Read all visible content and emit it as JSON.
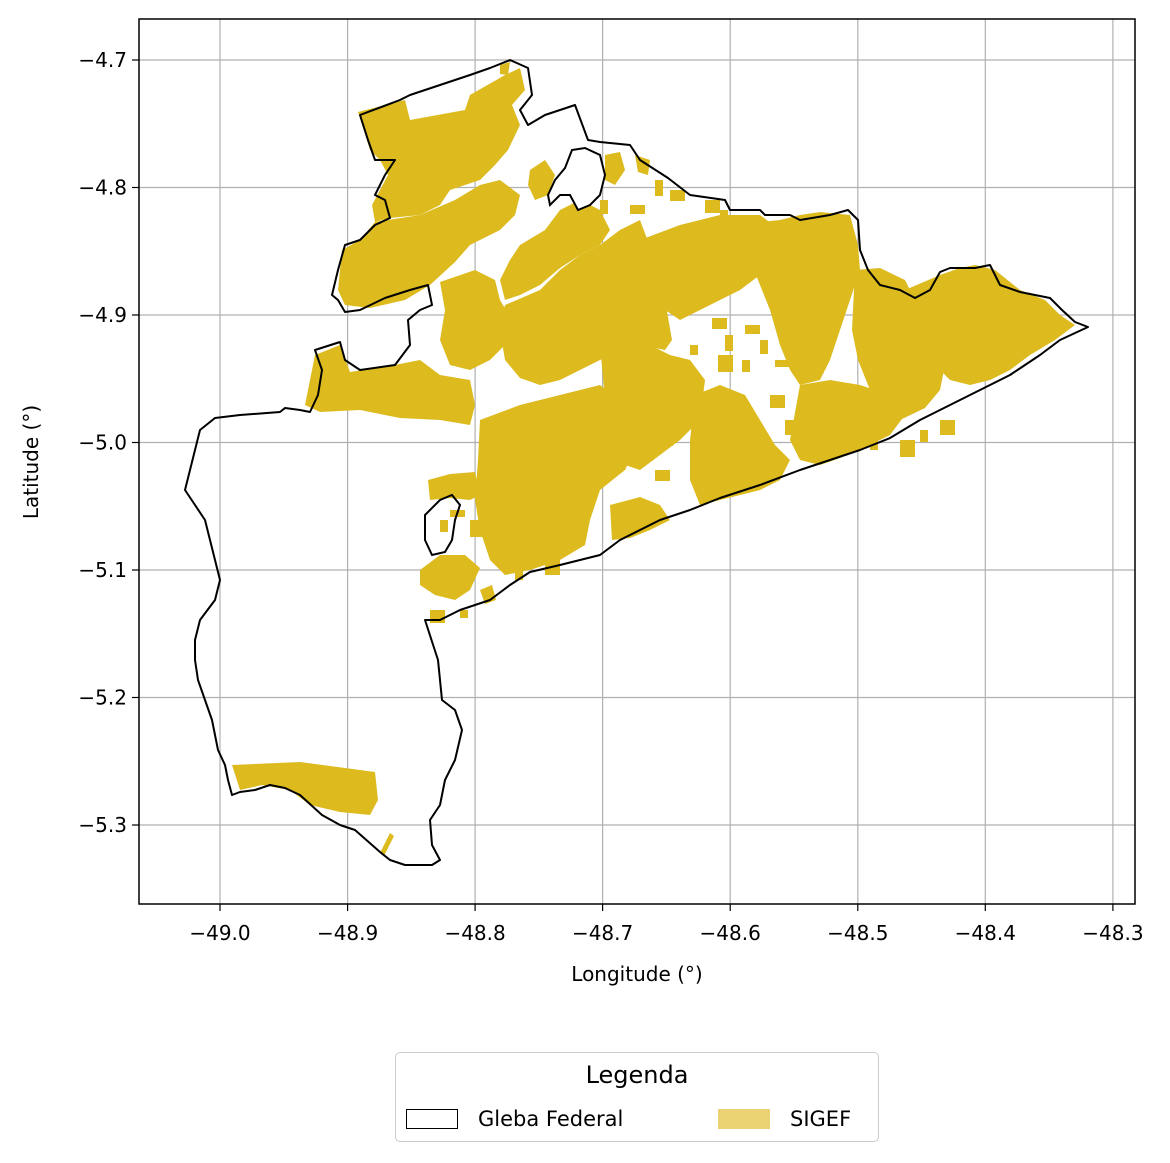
{
  "chart_data": {
    "type": "map",
    "title": "",
    "xlabel": "Longitude (°)",
    "ylabel": "Latitude (°)",
    "xlim": [
      -49.065,
      -48.287
    ],
    "ylim": [
      -5.363,
      -4.667
    ],
    "xticks": [
      -49.0,
      -48.9,
      -48.8,
      -48.7,
      -48.6,
      -48.5,
      -48.4,
      -48.3
    ],
    "xtick_labels": [
      "−49.0",
      "−48.9",
      "−48.8",
      "−48.7",
      "−48.6",
      "−48.5",
      "−48.4",
      "−48.3"
    ],
    "yticks": [
      -4.7,
      -4.8,
      -4.9,
      -5.0,
      -5.1,
      -5.2,
      -5.3
    ],
    "ytick_labels": [
      "−4.7",
      "−4.8",
      "−4.9",
      "−5.0",
      "−5.1",
      "−5.2",
      "−5.3"
    ],
    "grid": true,
    "legend_position": "bottom-center",
    "series": [
      {
        "name": "Gleba Federal",
        "edge_color": "#000000",
        "fill": "none"
      },
      {
        "name": "SIGEF",
        "fill_color": "#ddbb1f"
      }
    ]
  },
  "legend": {
    "title": "Legenda",
    "items": [
      {
        "label": "Gleba Federal"
      },
      {
        "label": "SIGEF"
      }
    ]
  }
}
